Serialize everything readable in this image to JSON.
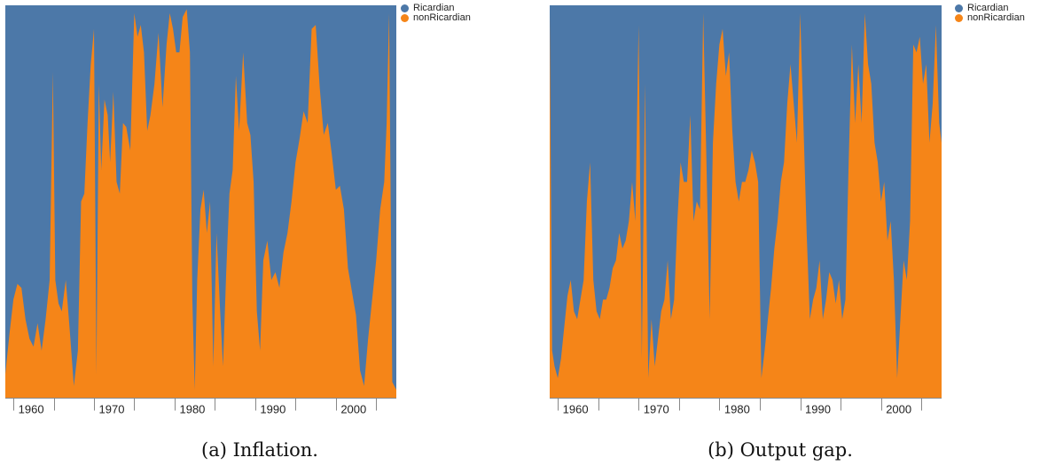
{
  "chart_data": [
    {
      "type": "area",
      "stacked": "normalized",
      "caption": "(a) Inflation.",
      "xlim": [
        1959,
        2007.5
      ],
      "ylim": [
        0,
        1
      ],
      "ticks": [
        1960,
        1970,
        1980,
        1990,
        2000
      ],
      "tick_labels": [
        "1960",
        "1970",
        "1980",
        "1990",
        "2000"
      ],
      "legend": "top-right",
      "series_colors": {
        "Ricardian": "#4c78a8",
        "nonRicardian": "#f58518"
      },
      "legend_entries": [
        "Ricardian",
        "nonRicardian"
      ],
      "x": [
        1959.0,
        1959.5,
        1960.0,
        1960.5,
        1961.0,
        1961.5,
        1962.0,
        1962.5,
        1963.0,
        1963.5,
        1964.0,
        1964.5,
        1964.9,
        1965.2,
        1965.6,
        1966.0,
        1966.5,
        1967.0,
        1967.5,
        1968.0,
        1968.4,
        1968.8,
        1969.2,
        1969.6,
        1970.0,
        1970.3,
        1970.6,
        1970.9,
        1971.3,
        1971.7,
        1972.0,
        1972.4,
        1972.8,
        1973.2,
        1973.6,
        1974.0,
        1974.5,
        1975.0,
        1975.4,
        1975.8,
        1976.2,
        1976.6,
        1977.0,
        1977.5,
        1978.0,
        1978.5,
        1979.0,
        1979.4,
        1979.8,
        1980.2,
        1980.6,
        1981.0,
        1981.5,
        1981.9,
        1982.2,
        1982.5,
        1982.8,
        1983.2,
        1983.6,
        1984.0,
        1984.4,
        1984.8,
        1985.2,
        1985.6,
        1986.0,
        1986.4,
        1986.8,
        1987.2,
        1987.6,
        1988.0,
        1988.5,
        1989.0,
        1989.4,
        1989.8,
        1990.2,
        1990.6,
        1991.0,
        1991.5,
        1992.0,
        1992.5,
        1993.0,
        1993.5,
        1994.0,
        1994.5,
        1995.0,
        1995.5,
        1996.0,
        1996.5,
        1997.0,
        1997.5,
        1998.0,
        1998.5,
        1999.0,
        1999.5,
        2000.0,
        2000.5,
        2001.0,
        2001.5,
        2002.0,
        2002.5,
        2003.0,
        2003.5,
        2004.0,
        2004.5,
        2005.0,
        2005.5,
        2006.0,
        2006.3,
        2006.6,
        2007.0,
        2007.5
      ],
      "series": [
        {
          "name": "nonRicardian",
          "values": [
            0.06,
            0.16,
            0.25,
            0.29,
            0.28,
            0.2,
            0.15,
            0.13,
            0.19,
            0.12,
            0.2,
            0.3,
            0.83,
            0.3,
            0.24,
            0.22,
            0.3,
            0.17,
            0.03,
            0.12,
            0.5,
            0.52,
            0.7,
            0.85,
            0.94,
            0.06,
            0.8,
            0.58,
            0.76,
            0.72,
            0.6,
            0.78,
            0.55,
            0.52,
            0.7,
            0.69,
            0.63,
            0.98,
            0.92,
            0.95,
            0.88,
            0.68,
            0.72,
            0.8,
            0.93,
            0.74,
            0.9,
            0.98,
            0.94,
            0.88,
            0.88,
            0.97,
            0.99,
            0.88,
            0.25,
            0.02,
            0.3,
            0.48,
            0.53,
            0.42,
            0.5,
            0.08,
            0.42,
            0.24,
            0.08,
            0.32,
            0.52,
            0.58,
            0.82,
            0.68,
            0.88,
            0.7,
            0.67,
            0.55,
            0.22,
            0.12,
            0.35,
            0.4,
            0.3,
            0.32,
            0.28,
            0.37,
            0.42,
            0.5,
            0.6,
            0.66,
            0.73,
            0.7,
            0.94,
            0.95,
            0.79,
            0.67,
            0.7,
            0.62,
            0.53,
            0.54,
            0.48,
            0.33,
            0.27,
            0.21,
            0.07,
            0.03,
            0.15,
            0.25,
            0.35,
            0.48,
            0.55,
            0.7,
            0.98,
            0.04,
            0.02
          ]
        },
        {
          "name": "Ricardian",
          "complement_of": "nonRicardian"
        }
      ]
    },
    {
      "type": "area",
      "stacked": "normalized",
      "caption": "(b) Output gap.",
      "xlim": [
        1959,
        2007.5
      ],
      "ylim": [
        0,
        1
      ],
      "ticks": [
        1960,
        1970,
        1980,
        1990,
        2000
      ],
      "tick_labels": [
        "1960",
        "1970",
        "1980",
        "1990",
        "2000"
      ],
      "legend": "top-right",
      "series_colors": {
        "Ricardian": "#4c78a8",
        "nonRicardian": "#f58518"
      },
      "legend_entries": [
        "Ricardian",
        "nonRicardian"
      ],
      "x": [
        1959.0,
        1959.3,
        1959.6,
        1960.0,
        1960.4,
        1960.8,
        1961.2,
        1961.6,
        1962.0,
        1962.4,
        1962.8,
        1963.2,
        1963.6,
        1964.0,
        1964.4,
        1964.8,
        1965.2,
        1965.6,
        1966.0,
        1966.4,
        1966.8,
        1967.2,
        1967.6,
        1968.0,
        1968.4,
        1968.8,
        1969.2,
        1969.6,
        1970.0,
        1970.4,
        1970.8,
        1971.2,
        1971.6,
        1972.0,
        1972.4,
        1972.8,
        1973.2,
        1973.6,
        1974.0,
        1974.4,
        1974.8,
        1975.2,
        1975.6,
        1976.0,
        1976.4,
        1976.8,
        1977.2,
        1977.6,
        1978.0,
        1978.4,
        1978.8,
        1979.2,
        1979.6,
        1980.0,
        1980.4,
        1980.8,
        1981.2,
        1981.6,
        1982.0,
        1982.4,
        1982.8,
        1983.2,
        1983.6,
        1984.0,
        1984.4,
        1984.8,
        1985.2,
        1985.6,
        1986.0,
        1986.4,
        1986.8,
        1987.2,
        1987.6,
        1988.0,
        1988.4,
        1988.8,
        1989.2,
        1989.6,
        1990.0,
        1990.4,
        1990.8,
        1991.2,
        1991.6,
        1992.0,
        1992.4,
        1992.8,
        1993.2,
        1993.6,
        1994.0,
        1994.4,
        1994.8,
        1995.2,
        1995.6,
        1996.0,
        1996.4,
        1996.8,
        1997.2,
        1997.6,
        1998.0,
        1998.4,
        1998.8,
        1999.2,
        1999.6,
        2000.0,
        2000.4,
        2000.8,
        2001.2,
        2001.6,
        2002.0,
        2002.4,
        2002.8,
        2003.2,
        2003.6,
        2004.0,
        2004.4,
        2004.8,
        2005.2,
        2005.6,
        2006.0,
        2006.4,
        2006.8,
        2007.2,
        2007.5
      ],
      "series": [
        {
          "name": "nonRicardian",
          "values": [
            0.98,
            0.12,
            0.08,
            0.05,
            0.1,
            0.18,
            0.26,
            0.3,
            0.22,
            0.2,
            0.25,
            0.3,
            0.5,
            0.6,
            0.3,
            0.22,
            0.2,
            0.25,
            0.25,
            0.28,
            0.33,
            0.35,
            0.42,
            0.38,
            0.4,
            0.45,
            0.55,
            0.45,
            0.95,
            0.1,
            0.8,
            0.05,
            0.2,
            0.08,
            0.15,
            0.22,
            0.25,
            0.35,
            0.2,
            0.25,
            0.45,
            0.6,
            0.55,
            0.55,
            0.72,
            0.45,
            0.5,
            0.48,
            0.98,
            0.6,
            0.2,
            0.65,
            0.8,
            0.9,
            0.94,
            0.82,
            0.88,
            0.68,
            0.55,
            0.5,
            0.55,
            0.55,
            0.58,
            0.63,
            0.6,
            0.55,
            0.05,
            0.12,
            0.2,
            0.28,
            0.38,
            0.45,
            0.55,
            0.6,
            0.75,
            0.85,
            0.75,
            0.65,
            0.98,
            0.7,
            0.42,
            0.2,
            0.25,
            0.28,
            0.35,
            0.2,
            0.25,
            0.32,
            0.3,
            0.24,
            0.3,
            0.2,
            0.25,
            0.6,
            0.9,
            0.7,
            0.85,
            0.7,
            0.98,
            0.85,
            0.8,
            0.65,
            0.6,
            0.5,
            0.55,
            0.4,
            0.45,
            0.3,
            0.05,
            0.2,
            0.35,
            0.3,
            0.45,
            0.9,
            0.88,
            0.92,
            0.8,
            0.85,
            0.65,
            0.75,
            0.95,
            0.7,
            0.65
          ]
        },
        {
          "name": "Ricardian",
          "complement_of": "nonRicardian"
        }
      ]
    }
  ]
}
